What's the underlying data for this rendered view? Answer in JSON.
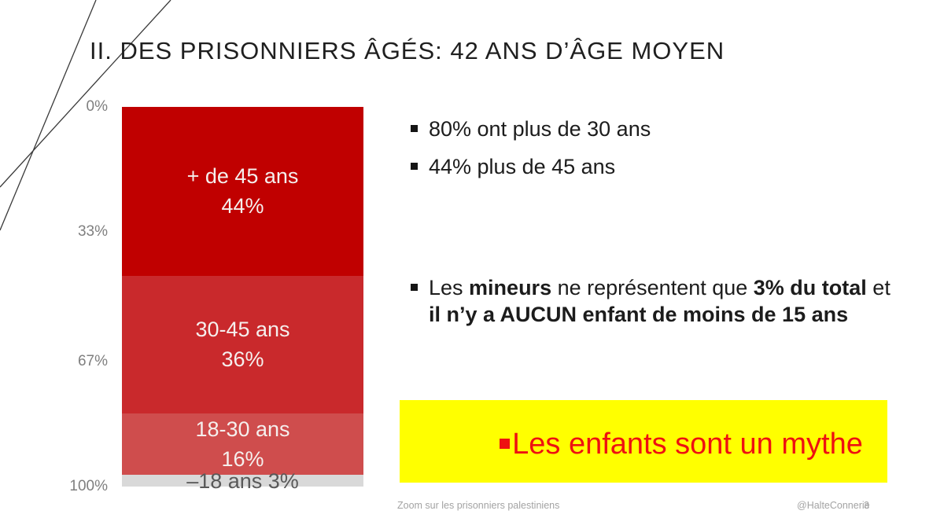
{
  "slide": {
    "title": "II. DES PRISONNIERS ÂGÉS: 42 ANS D’ÂGE MOYEN",
    "background": "#FFFFFF"
  },
  "chart_data": {
    "type": "bar",
    "subtype": "100-percent-stacked-column",
    "title": "",
    "xlabel": "",
    "ylabel": "",
    "axis_direction": "0% at top, 100% at bottom",
    "ticks": [
      {
        "label": "0%",
        "pos": 0
      },
      {
        "label": "33%",
        "pos": 33
      },
      {
        "label": "67%",
        "pos": 67
      },
      {
        "label": "100%",
        "pos": 100
      }
    ],
    "segments": [
      {
        "label": "+ de 45 ans",
        "value_label": "44%",
        "value": 44,
        "color": "#C00000",
        "text_color": "#F5EFED"
      },
      {
        "label": "30-45 ans",
        "value_label": "36%",
        "value": 36,
        "color": "#C9292C",
        "text_color": "#F5EFED"
      },
      {
        "label": "18-30 ans",
        "value_label": "16%",
        "value": 16,
        "color": "#CF4D4D",
        "text_color": "#F5EFED"
      },
      {
        "label": "–18 ans 3%",
        "value_label": "",
        "value": 3,
        "color": "#D9D9D9",
        "text_color": "#595959"
      }
    ]
  },
  "bullets": {
    "item1": "80% ont plus de 30 ans",
    "item2": "44% plus de 45 ans",
    "item3_rich": [
      {
        "t": "Les ",
        "b": false
      },
      {
        "t": "mineurs",
        "b": true
      },
      {
        "t": " ne représentent que ",
        "b": false
      },
      {
        "t": "3% du total",
        "b": true
      },
      {
        "t": " et",
        "b": false
      },
      {
        "br": true
      },
      {
        "t": "il n’y a AUCUN enfant de moins de 15 ans",
        "b": true
      }
    ]
  },
  "highlight": {
    "text": "Les enfants sont un mythe",
    "background": "#FFFF00",
    "text_color": "#EE1111"
  },
  "footer": {
    "left": "Zoom sur les prisonniers palestiniens",
    "handle": "@HalteConnerie",
    "page": "3"
  }
}
